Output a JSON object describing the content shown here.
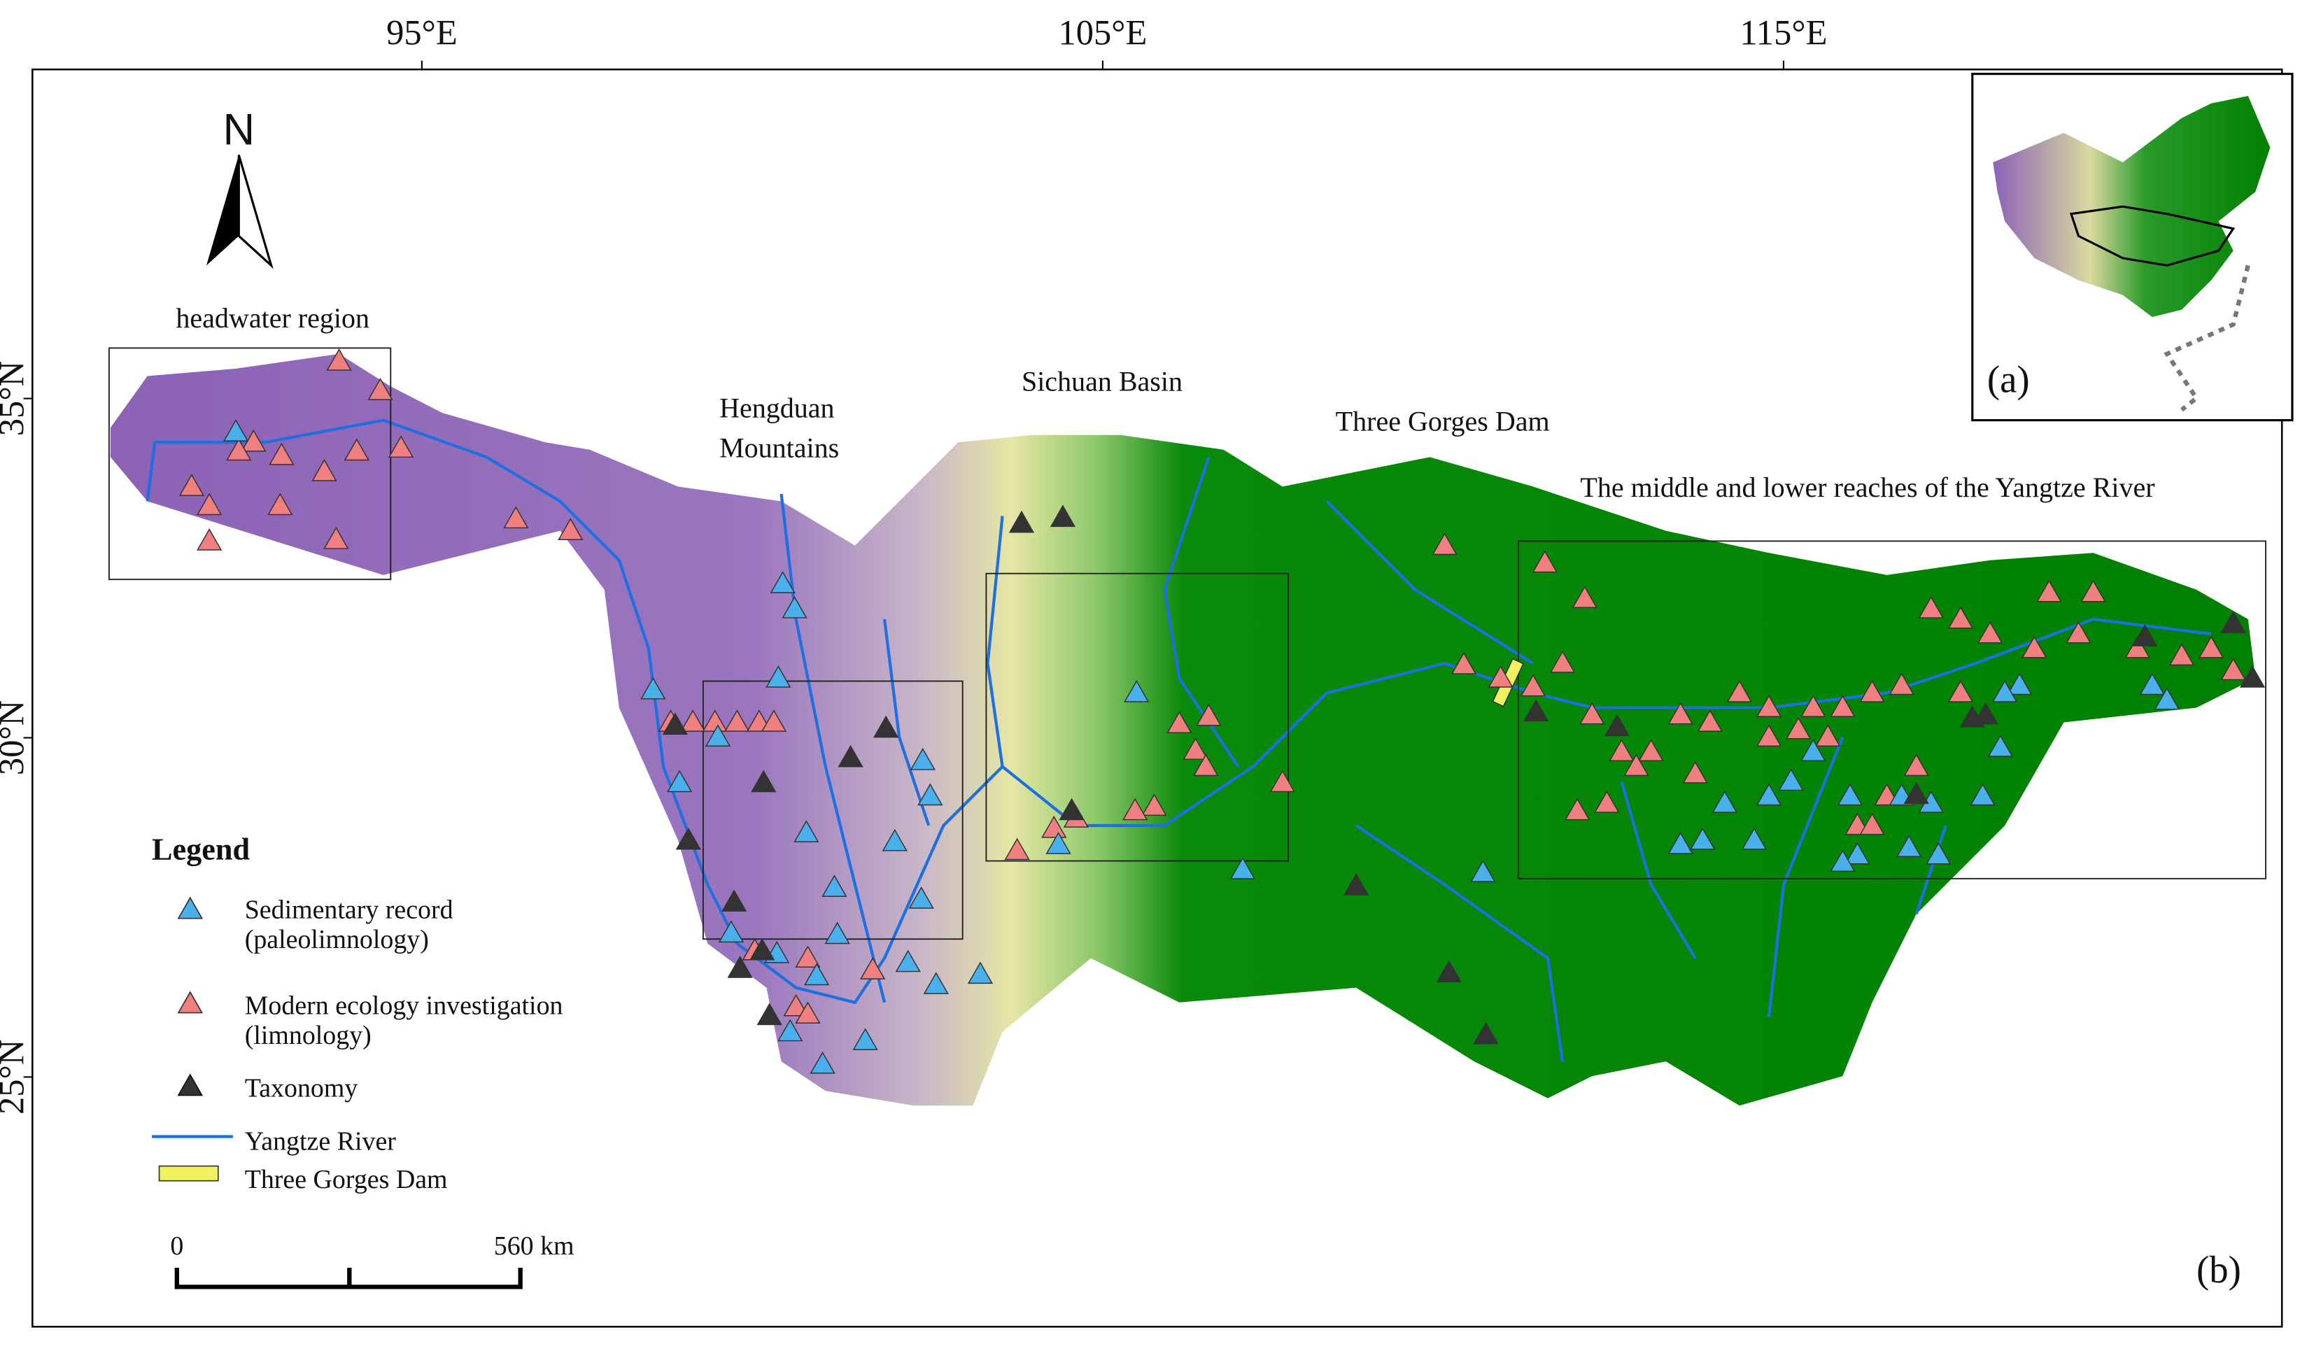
{
  "map": {
    "xlim": [
      89.28,
      122.32
    ],
    "ylim": [
      21.32,
      39.85
    ],
    "xticks": [
      {
        "value": 95,
        "label": "95°E"
      },
      {
        "value": 105,
        "label": "105°E"
      },
      {
        "value": 115,
        "label": "115°E"
      }
    ],
    "yticks": [
      {
        "value": 35,
        "label": "35°N"
      },
      {
        "value": 30,
        "label": "30°N"
      },
      {
        "value": 25,
        "label": "25°N"
      }
    ]
  },
  "labels": {
    "north": "N",
    "headwater": "headwater region",
    "hengduan": [
      "Hengduan",
      "Mountains"
    ],
    "sichuan": "Sichuan Basin",
    "dam": "Three Gorges Dam",
    "middle_lower": "The middle and lower reaches of the Yangtze River",
    "panel_a": "(a)",
    "panel_b": "(b)"
  },
  "legend": {
    "title": "Legend",
    "sedimentary": [
      "Sedimentary record",
      "(paleolimnology)"
    ],
    "modern": [
      "Modern ecology investigation",
      "(limnology)"
    ],
    "taxonomy": "Taxonomy",
    "river": "Yangtze River",
    "dam": "Three Gorges Dam"
  },
  "scale": {
    "start": "0",
    "end": "560 km"
  }
}
